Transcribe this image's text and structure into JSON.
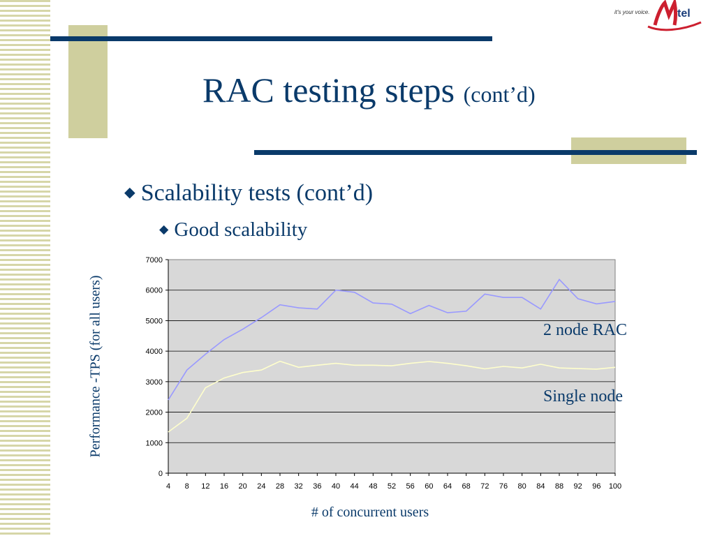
{
  "slide": {
    "title_main": "RAC testing steps",
    "title_sub": "(cont’d)",
    "bullet1": "Scalability tests (cont’d)",
    "bullet2": "Good scalability",
    "bullet_marker": "◆",
    "logo": {
      "tagline": "it's your voice.",
      "brand": "Mtel"
    }
  },
  "colors": {
    "title": "#0a3a6a",
    "bar_navy": "#0a3a6a",
    "accent_khaki": "#cfcf9e",
    "plot_bg": "#d8d8d8",
    "series_rac": "#9999ff",
    "series_single": "#ffffcc",
    "logo_red": "#cc1f2f"
  },
  "chart_data": {
    "type": "line",
    "xlabel": "# of concurrent users",
    "ylabel": "Performance  -TPS  (for all users)",
    "ylim": [
      0,
      7000
    ],
    "yticks": [
      0,
      1000,
      2000,
      3000,
      4000,
      5000,
      6000,
      7000
    ],
    "x": [
      4,
      8,
      12,
      16,
      20,
      24,
      28,
      32,
      36,
      40,
      44,
      48,
      52,
      56,
      60,
      64,
      68,
      72,
      76,
      80,
      84,
      88,
      92,
      96,
      100
    ],
    "grid": true,
    "legend": "inline-right",
    "series": [
      {
        "name": "2 node RAC",
        "values": [
          2400,
          3380,
          3900,
          4380,
          4720,
          5100,
          5520,
          5420,
          5380,
          6000,
          5930,
          5580,
          5540,
          5230,
          5500,
          5260,
          5310,
          5870,
          5760,
          5760,
          5380,
          6350,
          5720,
          5550,
          5630
        ]
      },
      {
        "name": "Single node",
        "values": [
          1350,
          1800,
          2800,
          3120,
          3300,
          3380,
          3670,
          3470,
          3540,
          3600,
          3540,
          3540,
          3520,
          3600,
          3660,
          3600,
          3520,
          3420,
          3500,
          3450,
          3570,
          3450,
          3430,
          3410,
          3470
        ]
      }
    ]
  }
}
